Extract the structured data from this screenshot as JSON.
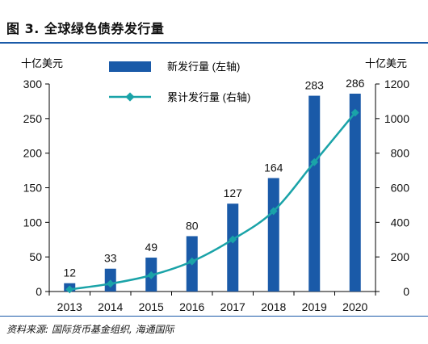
{
  "figure": {
    "title": "图 3. 全球绿色债券发行量",
    "source": "资料来源: 国际货币基金组织, 海通国际"
  },
  "colors": {
    "bar": "#1a5aa8",
    "line": "#1aa3a8",
    "axis": "#000000",
    "rule": "#1a5aa8"
  },
  "chart_data": {
    "type": "bar",
    "categories": [
      "2013",
      "2014",
      "2015",
      "2016",
      "2017",
      "2018",
      "2019",
      "2020"
    ],
    "series": [
      {
        "name": "新发行量 (左轴)",
        "type": "bar",
        "axis": "left",
        "values": [
          12,
          33,
          49,
          80,
          127,
          164,
          283,
          286
        ]
      },
      {
        "name": "累计发行量 (右轴)",
        "type": "line",
        "axis": "right",
        "values": [
          12,
          45,
          94,
          174,
          301,
          465,
          748,
          1034
        ]
      }
    ],
    "left_axis": {
      "unit": "十亿美元",
      "ylim": [
        0,
        300
      ],
      "ticks": [
        0,
        50,
        100,
        150,
        200,
        250,
        300
      ]
    },
    "right_axis": {
      "unit": "十亿美元",
      "ylim": [
        0,
        1200
      ],
      "ticks": [
        0,
        200,
        400,
        600,
        800,
        1000,
        1200
      ]
    },
    "data_labels": [
      "12",
      "33",
      "49",
      "80",
      "127",
      "164",
      "283",
      "286"
    ],
    "legend_position": "top-center",
    "grid": false
  }
}
